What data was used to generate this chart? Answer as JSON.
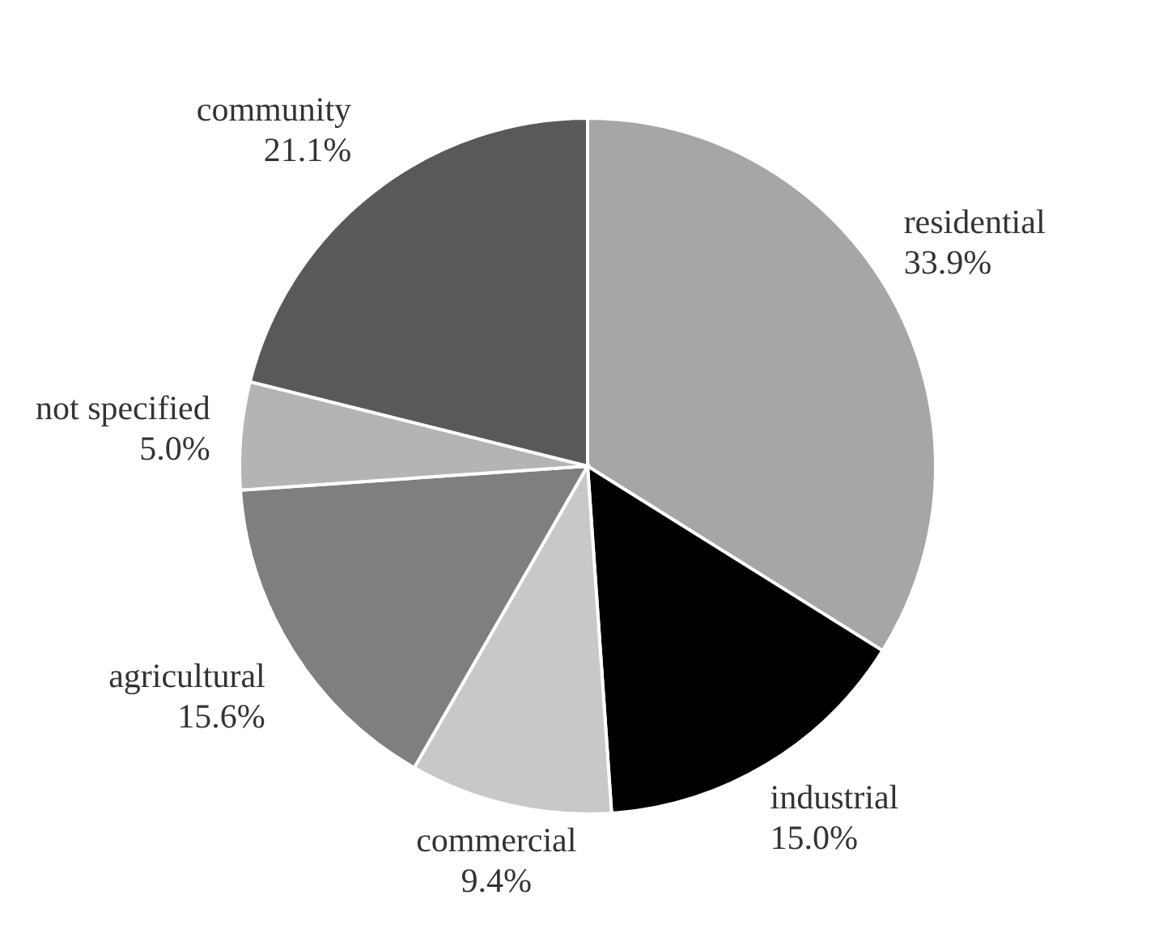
{
  "chart_data": {
    "type": "pie",
    "categories": [
      "residential",
      "industrial",
      "commercial",
      "agricultural",
      "not specified",
      "community"
    ],
    "values": [
      33.9,
      15.0,
      9.4,
      15.6,
      5.0,
      21.1
    ],
    "value_labels": [
      "33.9%",
      "15.0%",
      "9.4%",
      "15.6%",
      "5.0%",
      "21.1%"
    ],
    "colors": [
      "#a6a6a6",
      "#000000",
      "#c8c8c8",
      "#7f7f7f",
      "#b4b4b4",
      "#595959"
    ]
  }
}
